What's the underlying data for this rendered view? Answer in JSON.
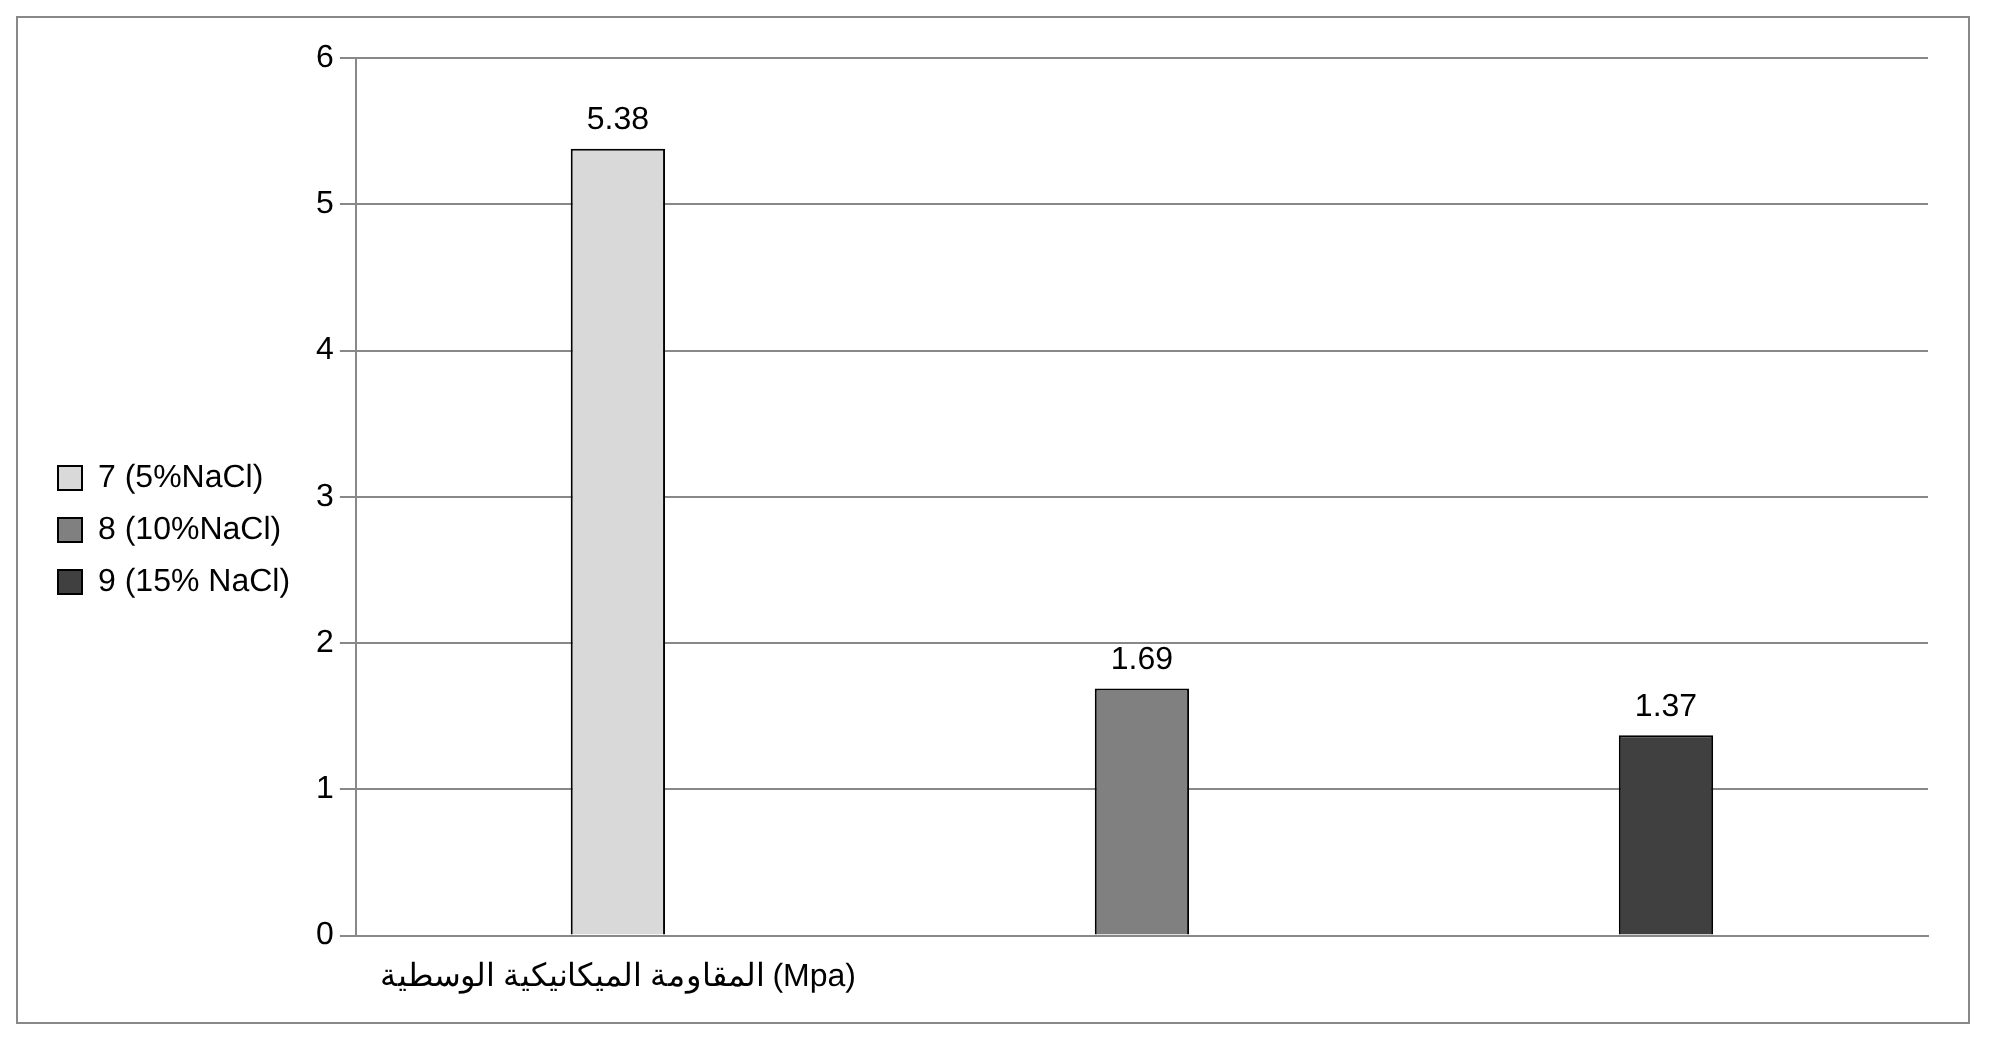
{
  "chart_data": {
    "type": "bar",
    "categories": [
      "المقاومة الميكانيكية الوسطية (Mpa)",
      null,
      null
    ],
    "series": [
      {
        "name": "7 (5%NaCl)",
        "color": "#d9d9d9",
        "values": [
          5.38,
          null,
          null
        ]
      },
      {
        "name": "8 (10%NaCl)",
        "color": "#808080",
        "values": [
          null,
          1.69,
          null
        ]
      },
      {
        "name": "9 (15% NaCl)",
        "color": "#404040",
        "values": [
          null,
          null,
          1.37
        ]
      }
    ],
    "ylim": [
      0,
      6
    ],
    "yticks": [
      0,
      1,
      2,
      3,
      4,
      5,
      6
    ],
    "grid": "y",
    "legend": "left",
    "data_labels": true
  }
}
